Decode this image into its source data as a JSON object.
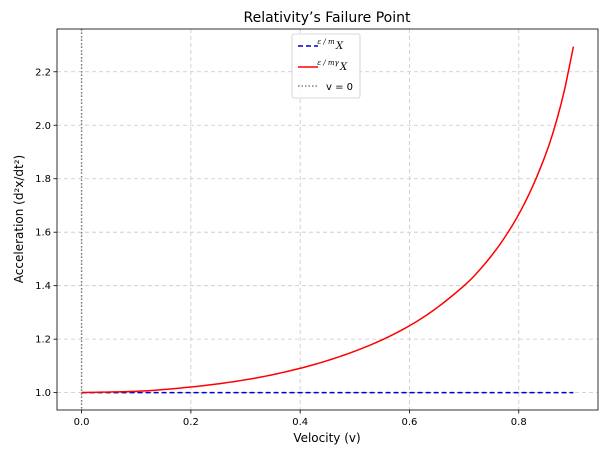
{
  "chart_data": {
    "type": "line",
    "title": "Relativity’s Failure Point",
    "xlabel": "Velocity (v)",
    "ylabel": "Acceleration (d²x/dt²)",
    "xlim": [
      -0.045,
      0.945
    ],
    "ylim": [
      0.935,
      2.36
    ],
    "xticks": [
      0.0,
      0.2,
      0.4,
      0.6,
      0.8
    ],
    "xtick_labels": [
      "0.0",
      "0.2",
      "0.4",
      "0.6",
      "0.8"
    ],
    "yticks": [
      1.0,
      1.2,
      1.4,
      1.6,
      1.8,
      2.0,
      2.2
    ],
    "ytick_labels": [
      "1.0",
      "1.2",
      "1.4",
      "1.6",
      "1.8",
      "2.0",
      "2.2"
    ],
    "grid": true,
    "legend_position": "top-center",
    "series": [
      {
        "name": "ε/m X",
        "legend_frac": "ε / m",
        "legend_var": "X",
        "style": "dashed",
        "color": "#0000cc",
        "x": [
          0.0,
          0.1,
          0.2,
          0.3,
          0.4,
          0.5,
          0.6,
          0.7,
          0.8,
          0.9
        ],
        "y": [
          1.0,
          1.0,
          1.0,
          1.0,
          1.0,
          1.0,
          1.0,
          1.0,
          1.0,
          1.0
        ]
      },
      {
        "name": "ε/(mγ) X",
        "legend_frac": "ε / mγ",
        "legend_var": "X",
        "style": "solid",
        "color": "#ff0000",
        "x": [
          0.0,
          0.1,
          0.2,
          0.3,
          0.4,
          0.5,
          0.6,
          0.7,
          0.75,
          0.8,
          0.85,
          0.88,
          0.9
        ],
        "y": [
          1.0,
          1.005,
          1.021,
          1.048,
          1.091,
          1.155,
          1.25,
          1.4,
          1.512,
          1.667,
          1.895,
          2.1,
          2.294
        ]
      }
    ],
    "vline": {
      "name": "v = 0",
      "x": 0.0,
      "style": "dotted",
      "color": "#808080"
    }
  }
}
